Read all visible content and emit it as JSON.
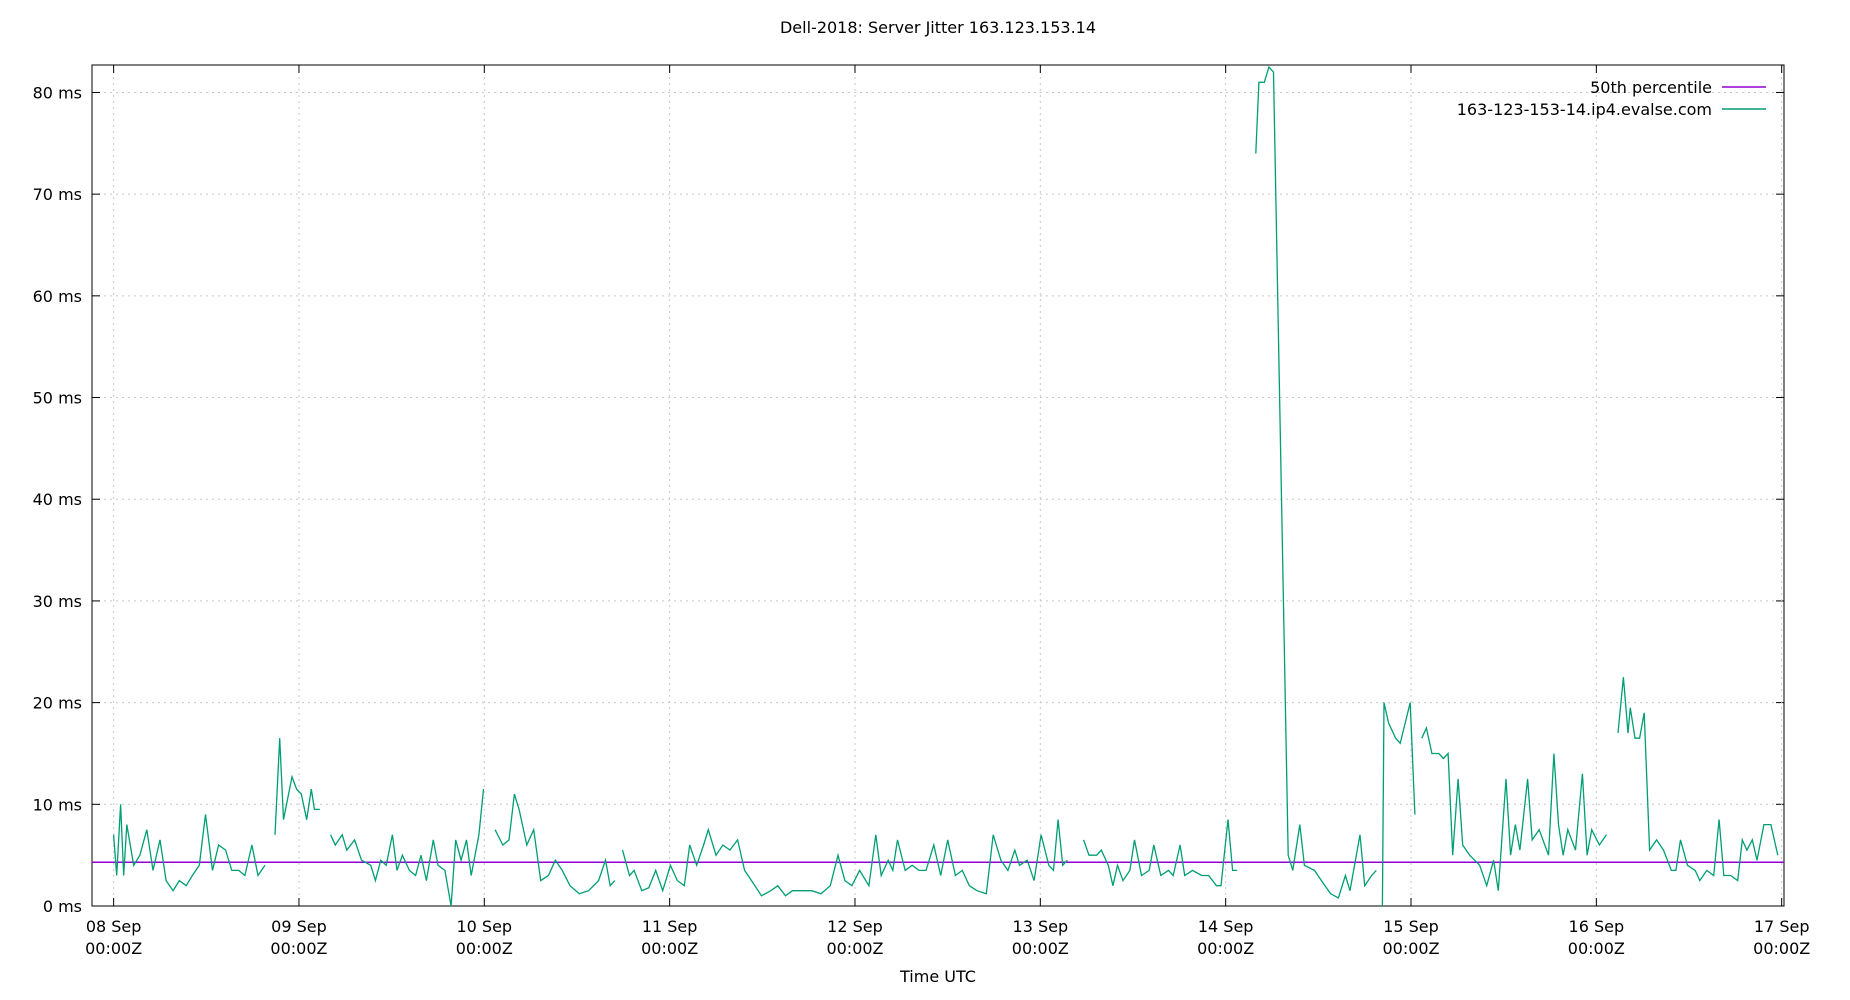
{
  "chart_data": {
    "type": "line",
    "title": "Dell-2018: Server Jitter 163.123.153.14",
    "x_label": "Time UTC",
    "xlim": [
      -2.8,
      216.3
    ],
    "ylim": [
      0,
      82.7
    ],
    "xticks": [
      {
        "value": 0,
        "label": [
          "08 Sep",
          "00:00Z"
        ]
      },
      {
        "value": 24,
        "label": [
          "09 Sep",
          "00:00Z"
        ]
      },
      {
        "value": 48,
        "label": [
          "10 Sep",
          "00:00Z"
        ]
      },
      {
        "value": 72,
        "label": [
          "11 Sep",
          "00:00Z"
        ]
      },
      {
        "value": 96,
        "label": [
          "12 Sep",
          "00:00Z"
        ]
      },
      {
        "value": 120,
        "label": [
          "13 Sep",
          "00:00Z"
        ]
      },
      {
        "value": 144,
        "label": [
          "14 Sep",
          "00:00Z"
        ]
      },
      {
        "value": 168,
        "label": [
          "15 Sep",
          "00:00Z"
        ]
      },
      {
        "value": 192,
        "label": [
          "16 Sep",
          "00:00Z"
        ]
      },
      {
        "value": 216,
        "label": [
          "17 Sep",
          "00:00Z"
        ]
      }
    ],
    "yticks": [
      {
        "value": 0,
        "label": "0 ms"
      },
      {
        "value": 10,
        "label": "10 ms"
      },
      {
        "value": 20,
        "label": "20 ms"
      },
      {
        "value": 30,
        "label": "30 ms"
      },
      {
        "value": 40,
        "label": "40 ms"
      },
      {
        "value": 50,
        "label": "50 ms"
      },
      {
        "value": 60,
        "label": "60 ms"
      },
      {
        "value": 70,
        "label": "70 ms"
      },
      {
        "value": 80,
        "label": "80 ms"
      }
    ],
    "grid": true,
    "legend": "top-right",
    "series": [
      {
        "name": "50th percentile",
        "color": "#9400d3",
        "value": 4.3
      },
      {
        "name": "163-123-153-14.ip4.evalse.com",
        "color": "#009e73",
        "x": [
          0,
          0.4,
          0.9,
          1.3,
          1.7,
          2.6,
          3.4,
          4.3,
          5.1,
          6,
          6.8,
          7.7,
          8.5,
          9.4,
          10.2,
          11.1,
          11.9,
          12.8,
          13.6,
          14.5,
          15.3,
          16.2,
          17,
          17.9,
          18.7,
          19.6,
          20.3,
          20.9,
          21.5,
          22.0,
          23.1,
          23.7,
          24.3,
          25.0,
          25.6,
          26.0,
          26.7,
          27.4,
          28.1,
          28.7,
          29.6,
          30.2,
          31.2,
          32.1,
          33.3,
          33.9,
          34.6,
          35.3,
          36.1,
          36.7,
          37.4,
          38.3,
          39.1,
          39.8,
          40.5,
          41.4,
          42.0,
          42.9,
          43.7,
          44.3,
          45.0,
          45.7,
          46.3,
          47.3,
          47.9,
          48.6,
          49.4,
          50.4,
          51.2,
          51.9,
          52.5,
          53.5,
          54.4,
          55.3,
          56.3,
          57.2,
          58.1,
          59.1,
          60.3,
          61.5,
          62.8,
          63.7,
          64.3,
          64.9,
          65.4,
          65.9,
          66.8,
          67.4,
          68.4,
          69.3,
          70.2,
          71.1,
          72.1,
          73.0,
          73.9,
          74.6,
          75.5,
          76.4,
          77.0,
          78.0,
          78.9,
          79.8,
          80.8,
          81.7,
          82.6,
          83.9,
          85.1,
          86.0,
          87.0,
          87.9,
          89.1,
          90.4,
          91.6,
          92.8,
          93.8,
          94.7,
          95.6,
          96.6,
          97.8,
          98.7,
          99.4,
          100.3,
          100.9,
          101.5,
          102.5,
          103.4,
          104.3,
          105.2,
          106.2,
          107.1,
          108.0,
          109.0,
          109.9,
          110.8,
          111.8,
          113.0,
          113.9,
          114.9,
          115.8,
          116.7,
          117.3,
          118.3,
          119.2,
          120.1,
          121.1,
          121.7,
          122.3,
          122.9,
          123.5,
          124.3,
          125.6,
          126.3,
          127.3,
          127.9,
          128.8,
          129.4,
          130.0,
          130.7,
          131.6,
          132.2,
          133.1,
          134.1,
          134.7,
          135.6,
          136.6,
          137.2,
          138.1,
          138.7,
          139.7,
          140.9,
          141.8,
          142.8,
          143.4,
          144.3,
          144.9,
          145.5,
          146.5,
          147.9,
          148.3,
          149.0,
          149.6,
          150.2,
          152.1,
          152.7,
          153.6,
          154.2,
          155.5,
          156.4,
          157.6,
          158.6,
          159.5,
          160.1,
          161.4,
          162.0,
          162.9,
          163.5,
          163.9,
          164.3,
          164.5,
          165.1,
          166.0,
          166.6,
          167.9,
          168.5,
          169.0,
          169.4,
          170.0,
          170.7,
          171.6,
          172.2,
          172.8,
          173.4,
          174.1,
          174.7,
          175.6,
          176.9,
          177.8,
          178.7,
          179.3,
          180.3,
          180.9,
          181.5,
          182.1,
          183.1,
          183.7,
          184.6,
          185.8,
          186.5,
          187.1,
          187.7,
          188.3,
          189.3,
          190.2,
          190.8,
          191.4,
          192.4,
          193.3,
          194.0,
          194.8,
          195.5,
          196.1,
          196.4,
          197.0,
          197.6,
          198.2,
          198.9,
          199.8,
          200.7,
          201.7,
          202.3,
          202.9,
          203.8,
          204.8,
          205.4,
          206.3,
          207.2,
          207.9,
          208.5,
          209.4,
          210.3,
          210.9,
          211.5,
          212.2,
          212.8,
          213.7,
          214.6,
          215.5
        ],
        "values": [
          7,
          3,
          10,
          3,
          8,
          4,
          5,
          7.5,
          3.5,
          6.5,
          2.5,
          1.5,
          2.5,
          2,
          3,
          4,
          9,
          3.5,
          6,
          5.5,
          3.5,
          3.5,
          3,
          6,
          3,
          4,
          null,
          7,
          16.5,
          8.5,
          12.7,
          11.5,
          11,
          8.5,
          11.5,
          9.5,
          9.5,
          null,
          7,
          6,
          7,
          5.5,
          6.5,
          4.5,
          4,
          2.5,
          4.5,
          4,
          7,
          3.5,
          5,
          3.5,
          3,
          5,
          2.5,
          6.5,
          4,
          3.5,
          0,
          6.5,
          4.5,
          6.5,
          3,
          7,
          11.5,
          null,
          7.5,
          6,
          6.5,
          11,
          9.5,
          6,
          7.5,
          2.5,
          3,
          4.5,
          3.5,
          2,
          1.2,
          1.5,
          2.5,
          4.5,
          2,
          2.5,
          null,
          5.5,
          3,
          3.5,
          1.5,
          1.8,
          3.5,
          1.5,
          4,
          2.5,
          2,
          6,
          4,
          6,
          7.5,
          5,
          6,
          5.5,
          6.5,
          3.5,
          2.5,
          1,
          1.5,
          2,
          1,
          1.5,
          1.5,
          1.5,
          1.2,
          2,
          5,
          2.5,
          2,
          3.5,
          2,
          7,
          3,
          4.5,
          3.5,
          6.5,
          3.5,
          4,
          3.5,
          3.5,
          6,
          3,
          6.5,
          3,
          3.5,
          2,
          1.5,
          1.2,
          7,
          4.5,
          3.5,
          5.5,
          4,
          4.5,
          2.5,
          7,
          4,
          3.5,
          8.5,
          4,
          4.5,
          null,
          6.5,
          5,
          5,
          5.5,
          4,
          2,
          4,
          2.5,
          3.5,
          6.5,
          3,
          3.5,
          6,
          3,
          3.5,
          3,
          6,
          3,
          3.5,
          3,
          3,
          2,
          2,
          8.5,
          3.5,
          3.5,
          null,
          74,
          81,
          81,
          82.5,
          82,
          5,
          3.5,
          8,
          4,
          3.5,
          2.5,
          1.2,
          0.8,
          3,
          1.5,
          7,
          2,
          3,
          3.5,
          null,
          0,
          20,
          18,
          16.5,
          16,
          20,
          9,
          null,
          16.5,
          17.5,
          15,
          15,
          14.5,
          15,
          5,
          12.5,
          6,
          5,
          4,
          2,
          4.5,
          1.5,
          12.5,
          5,
          8,
          5.5,
          12.5,
          6.5,
          7.5,
          5,
          15,
          8,
          5,
          7.5,
          5.5,
          13,
          5,
          7.5,
          6,
          7,
          null,
          17,
          22.5,
          17,
          19.5,
          16.5,
          16.5,
          19,
          5.5,
          6.5,
          5.5,
          3.5,
          3.5,
          6.5,
          4,
          3.5,
          2.5,
          3.5,
          3,
          8.5,
          3,
          3,
          2.5,
          6.5,
          5.5,
          6.5,
          4.5,
          8,
          8,
          5
        ]
      }
    ]
  }
}
